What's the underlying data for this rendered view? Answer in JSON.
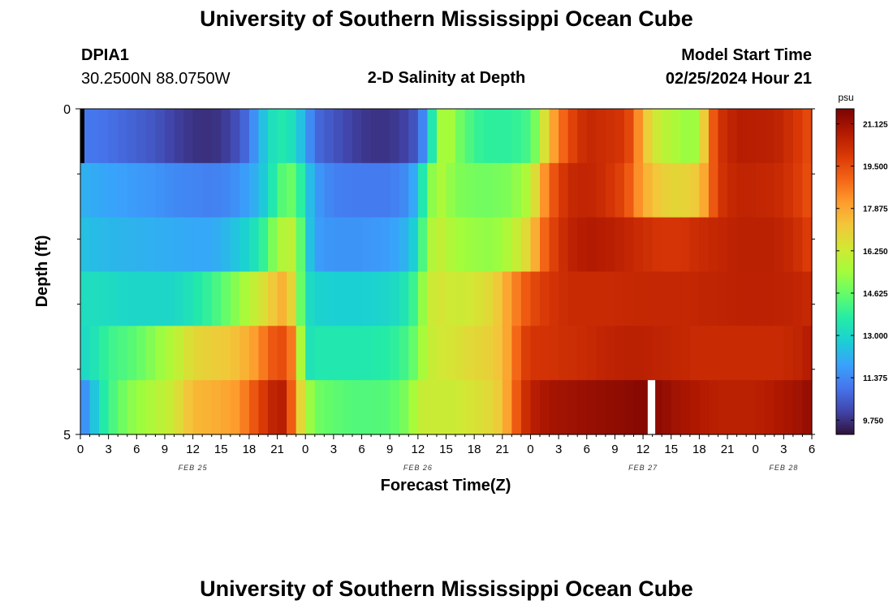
{
  "page": {
    "title_top": "University of Southern Mississippi Ocean Cube",
    "title_bottom": "University of Southern Mississippi Ocean Cube",
    "station": "DPIA1",
    "location": "30.2500N  88.0750W",
    "model_start_label": "Model Start Time",
    "model_start_value": "02/25/2024 Hour 21"
  },
  "chart_data": {
    "type": "heatmap",
    "title": "2-D Salinity at Depth",
    "xlabel": "Forecast Time(Z)",
    "ylabel": "Depth (ft)",
    "colorbar_unit": "psu",
    "colorbar_ticks": [
      21.125,
      19.5,
      17.875,
      16.25,
      14.625,
      13.0,
      11.375,
      9.75
    ],
    "value_range": [
      9.2,
      21.7
    ],
    "colormap": [
      "#30123b",
      "#4145ab",
      "#4675ed",
      "#39a2fc",
      "#1bcfd4",
      "#24eca6",
      "#61fc6c",
      "#a4fc3b",
      "#d1e834",
      "#f3c63a",
      "#fe9b2d",
      "#f36315",
      "#d93806",
      "#b11901",
      "#7a0403"
    ],
    "x_range_hours": [
      0,
      78
    ],
    "x_ticks": [
      {
        "h": 0,
        "label": "0"
      },
      {
        "h": 3,
        "label": "3"
      },
      {
        "h": 6,
        "label": "6"
      },
      {
        "h": 9,
        "label": "9"
      },
      {
        "h": 12,
        "label": "12"
      },
      {
        "h": 15,
        "label": "15"
      },
      {
        "h": 18,
        "label": "18"
      },
      {
        "h": 21,
        "label": "21"
      },
      {
        "h": 24,
        "label": "0"
      },
      {
        "h": 27,
        "label": "3"
      },
      {
        "h": 30,
        "label": "6"
      },
      {
        "h": 33,
        "label": "9"
      },
      {
        "h": 36,
        "label": "12"
      },
      {
        "h": 39,
        "label": "15"
      },
      {
        "h": 42,
        "label": "18"
      },
      {
        "h": 45,
        "label": "21"
      },
      {
        "h": 48,
        "label": "0"
      },
      {
        "h": 51,
        "label": "3"
      },
      {
        "h": 54,
        "label": "6"
      },
      {
        "h": 57,
        "label": "9"
      },
      {
        "h": 60,
        "label": "12"
      },
      {
        "h": 63,
        "label": "15"
      },
      {
        "h": 66,
        "label": "18"
      },
      {
        "h": 69,
        "label": "21"
      },
      {
        "h": 72,
        "label": "0"
      },
      {
        "h": 75,
        "label": "3"
      },
      {
        "h": 78,
        "label": "6"
      }
    ],
    "date_labels": [
      {
        "h": 12,
        "label": "FEB 25"
      },
      {
        "h": 36,
        "label": "FEB 26"
      },
      {
        "h": 60,
        "label": "FEB 27"
      },
      {
        "h": 75,
        "label": "FEB 28"
      }
    ],
    "y_range_ft": [
      0,
      5
    ],
    "y_tick_labels": [
      {
        "ft": 0,
        "label": "0"
      },
      {
        "ft": 5,
        "label": "5"
      }
    ],
    "missing": {
      "h_start": 60.5,
      "h_end": 61.3,
      "band": 5
    },
    "bands": [
      {
        "depth_ft": 0.25,
        "points": [
          [
            0,
            11.0
          ],
          [
            2,
            11.0
          ],
          [
            5,
            10.7
          ],
          [
            8,
            10.4
          ],
          [
            10,
            10.0
          ],
          [
            11,
            9.9
          ],
          [
            13,
            9.7
          ],
          [
            15,
            9.8
          ],
          [
            17,
            10.4
          ],
          [
            18,
            11.0
          ],
          [
            19,
            12.0
          ],
          [
            20,
            13.0
          ],
          [
            21,
            13.5
          ],
          [
            22,
            13.5
          ],
          [
            23,
            13.0
          ],
          [
            24,
            12.0
          ],
          [
            25,
            10.8
          ],
          [
            27,
            10.4
          ],
          [
            29,
            10.0
          ],
          [
            31,
            9.8
          ],
          [
            33,
            9.8
          ],
          [
            35,
            10.1
          ],
          [
            36,
            10.6
          ],
          [
            37,
            12.0
          ],
          [
            38,
            15.0
          ],
          [
            39,
            15.9
          ],
          [
            40,
            15.0
          ],
          [
            42,
            14.0
          ],
          [
            43,
            13.8
          ],
          [
            46,
            13.8
          ],
          [
            48,
            14.2
          ],
          [
            49,
            15.5
          ],
          [
            50,
            17.5
          ],
          [
            52,
            19.5
          ],
          [
            54,
            20.4
          ],
          [
            56,
            20.2
          ],
          [
            58,
            20.0
          ],
          [
            59,
            19.2
          ],
          [
            60,
            17.5
          ],
          [
            61,
            16.5
          ],
          [
            62,
            16.0
          ],
          [
            65,
            15.2
          ],
          [
            66,
            15.6
          ],
          [
            67,
            18.5
          ],
          [
            68,
            20.0
          ],
          [
            70,
            20.7
          ],
          [
            74,
            20.6
          ],
          [
            76,
            20.1
          ],
          [
            78,
            19.4
          ]
        ]
      },
      {
        "depth_ft": 1.0,
        "points": [
          [
            0,
            12.2
          ],
          [
            2,
            12.0
          ],
          [
            5,
            11.8
          ],
          [
            8,
            11.6
          ],
          [
            10,
            11.4
          ],
          [
            12,
            11.3
          ],
          [
            14,
            11.2
          ],
          [
            16,
            11.4
          ],
          [
            18,
            11.9
          ],
          [
            19,
            12.3
          ],
          [
            20,
            13.0
          ],
          [
            21,
            14.0
          ],
          [
            22,
            14.8
          ],
          [
            23,
            14.5
          ],
          [
            24,
            13.0
          ],
          [
            25,
            11.8
          ],
          [
            27,
            11.2
          ],
          [
            30,
            11.1
          ],
          [
            33,
            11.1
          ],
          [
            35,
            11.5
          ],
          [
            36,
            12.5
          ],
          [
            37,
            14.5
          ],
          [
            38,
            15.8
          ],
          [
            40,
            15.0
          ],
          [
            42,
            14.8
          ],
          [
            44,
            14.8
          ],
          [
            46,
            15.0
          ],
          [
            48,
            15.8
          ],
          [
            49,
            17.5
          ],
          [
            50,
            19.0
          ],
          [
            52,
            20.3
          ],
          [
            54,
            20.5
          ],
          [
            56,
            20.2
          ],
          [
            58,
            19.6
          ],
          [
            59,
            18.8
          ],
          [
            60,
            17.8
          ],
          [
            62,
            17.0
          ],
          [
            64,
            16.8
          ],
          [
            66,
            17.2
          ],
          [
            67,
            18.5
          ],
          [
            68,
            20.0
          ],
          [
            70,
            20.5
          ],
          [
            74,
            20.4
          ],
          [
            76,
            20.0
          ],
          [
            78,
            19.3
          ]
        ]
      },
      {
        "depth_ft": 2.0,
        "points": [
          [
            0,
            12.5
          ],
          [
            3,
            12.3
          ],
          [
            6,
            12.2
          ],
          [
            9,
            12.1
          ],
          [
            12,
            12.0
          ],
          [
            14,
            12.0
          ],
          [
            16,
            12.4
          ],
          [
            18,
            13.0
          ],
          [
            19,
            13.5
          ],
          [
            20,
            14.3
          ],
          [
            21,
            15.5
          ],
          [
            22,
            16.0
          ],
          [
            23,
            15.8
          ],
          [
            24,
            13.2
          ],
          [
            25,
            11.8
          ],
          [
            27,
            11.6
          ],
          [
            30,
            11.6
          ],
          [
            33,
            11.8
          ],
          [
            35,
            12.3
          ],
          [
            36,
            13.2
          ],
          [
            37,
            15.3
          ],
          [
            38,
            16.2
          ],
          [
            40,
            15.5
          ],
          [
            42,
            15.3
          ],
          [
            44,
            15.2
          ],
          [
            46,
            15.8
          ],
          [
            48,
            17.0
          ],
          [
            49,
            18.5
          ],
          [
            50,
            19.5
          ],
          [
            52,
            20.5
          ],
          [
            54,
            20.8
          ],
          [
            56,
            20.7
          ],
          [
            58,
            20.5
          ],
          [
            60,
            20.2
          ],
          [
            62,
            20.0
          ],
          [
            64,
            20.0
          ],
          [
            66,
            20.3
          ],
          [
            68,
            20.4
          ],
          [
            70,
            20.6
          ],
          [
            74,
            20.6
          ],
          [
            76,
            20.3
          ],
          [
            78,
            19.7
          ]
        ]
      },
      {
        "depth_ft": 3.0,
        "points": [
          [
            0,
            13.2
          ],
          [
            2,
            13.2
          ],
          [
            5,
            13.0
          ],
          [
            8,
            13.0
          ],
          [
            10,
            13.0
          ],
          [
            12,
            13.4
          ],
          [
            14,
            14.0
          ],
          [
            16,
            14.8
          ],
          [
            18,
            15.8
          ],
          [
            20,
            16.8
          ],
          [
            21,
            17.5
          ],
          [
            22,
            17.8
          ],
          [
            23,
            16.0
          ],
          [
            24,
            13.3
          ],
          [
            25,
            12.9
          ],
          [
            27,
            12.8
          ],
          [
            30,
            12.8
          ],
          [
            33,
            13.0
          ],
          [
            35,
            13.5
          ],
          [
            36,
            14.5
          ],
          [
            37,
            16.0
          ],
          [
            38,
            16.5
          ],
          [
            40,
            16.2
          ],
          [
            42,
            16.4
          ],
          [
            44,
            16.8
          ],
          [
            45,
            17.5
          ],
          [
            46,
            18.3
          ],
          [
            47,
            18.9
          ],
          [
            48,
            19.5
          ],
          [
            50,
            20.0
          ],
          [
            52,
            20.3
          ],
          [
            56,
            20.3
          ],
          [
            60,
            20.4
          ],
          [
            64,
            20.4
          ],
          [
            68,
            20.5
          ],
          [
            72,
            20.6
          ],
          [
            76,
            20.5
          ],
          [
            78,
            20.3
          ]
        ]
      },
      {
        "depth_ft": 4.0,
        "points": [
          [
            0,
            13.0
          ],
          [
            1,
            13.2
          ],
          [
            3,
            14.0
          ],
          [
            6,
            14.5
          ],
          [
            9,
            15.5
          ],
          [
            10,
            15.8
          ],
          [
            12,
            16.8
          ],
          [
            14,
            17.0
          ],
          [
            16,
            17.2
          ],
          [
            18,
            17.8
          ],
          [
            19,
            18.3
          ],
          [
            20,
            19.0
          ],
          [
            21,
            19.5
          ],
          [
            22,
            19.4
          ],
          [
            23,
            18.0
          ],
          [
            24,
            13.2
          ],
          [
            25,
            13.5
          ],
          [
            27,
            13.5
          ],
          [
            30,
            13.5
          ],
          [
            33,
            13.7
          ],
          [
            35,
            14.2
          ],
          [
            36,
            15.0
          ],
          [
            37,
            16.0
          ],
          [
            38,
            16.3
          ],
          [
            40,
            16.5
          ],
          [
            42,
            16.8
          ],
          [
            44,
            17.0
          ],
          [
            45,
            17.5
          ],
          [
            46,
            18.3
          ],
          [
            47,
            19.6
          ],
          [
            48,
            20.0
          ],
          [
            52,
            20.2
          ],
          [
            54,
            20.3
          ],
          [
            56,
            20.5
          ],
          [
            58,
            20.6
          ],
          [
            60,
            20.6
          ],
          [
            62,
            20.5
          ],
          [
            64,
            20.4
          ],
          [
            66,
            20.3
          ],
          [
            70,
            20.3
          ],
          [
            74,
            20.3
          ],
          [
            76,
            20.4
          ],
          [
            78,
            20.8
          ]
        ]
      },
      {
        "depth_ft": 4.75,
        "points": [
          [
            0,
            11.2
          ],
          [
            1,
            12.0
          ],
          [
            2,
            13.2
          ],
          [
            3,
            14.0
          ],
          [
            5,
            15.0
          ],
          [
            7,
            15.5
          ],
          [
            9,
            16.0
          ],
          [
            10,
            16.3
          ],
          [
            11,
            17.0
          ],
          [
            12,
            17.5
          ],
          [
            13,
            17.6
          ],
          [
            15,
            17.8
          ],
          [
            17,
            18.2
          ],
          [
            18,
            19.0
          ],
          [
            19,
            19.6
          ],
          [
            20,
            20.2
          ],
          [
            21,
            20.8
          ],
          [
            22,
            20.5
          ],
          [
            23,
            17.8
          ],
          [
            24,
            15.8
          ],
          [
            25,
            14.8
          ],
          [
            27,
            14.5
          ],
          [
            30,
            14.3
          ],
          [
            33,
            14.4
          ],
          [
            35,
            15.0
          ],
          [
            36,
            16.0
          ],
          [
            37,
            16.2
          ],
          [
            40,
            16.2
          ],
          [
            42,
            16.5
          ],
          [
            44,
            16.8
          ],
          [
            45,
            17.3
          ],
          [
            46,
            18.6
          ],
          [
            47,
            19.8
          ],
          [
            48,
            20.6
          ],
          [
            50,
            21.0
          ],
          [
            54,
            21.2
          ],
          [
            58,
            21.4
          ],
          [
            60,
            21.5
          ],
          [
            61,
            21.5
          ],
          [
            62,
            21.3
          ],
          [
            64,
            21.0
          ],
          [
            66,
            20.8
          ],
          [
            68,
            20.6
          ],
          [
            72,
            20.6
          ],
          [
            74,
            20.8
          ],
          [
            76,
            21.0
          ],
          [
            78,
            21.3
          ]
        ]
      }
    ]
  }
}
